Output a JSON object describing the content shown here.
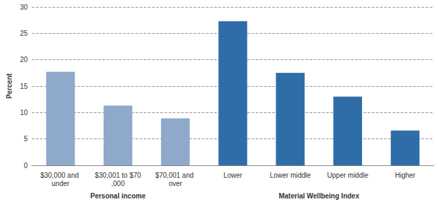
{
  "chart_data": {
    "type": "bar",
    "y_label": "Percent",
    "categories": [
      "$30,000 and under",
      "$30,001 to $70,000",
      "$70,001 and over",
      "Lower",
      "Lower middle",
      "Upper middle",
      "Higher"
    ],
    "values": [
      17.7,
      11.3,
      8.9,
      27.3,
      17.5,
      13.0,
      6.6
    ],
    "colors": [
      "#8fa9cb",
      "#8fa9cb",
      "#8fa9cb",
      "#2f6da9",
      "#2f6da9",
      "#2f6da9",
      "#2f6da9"
    ],
    "ylim": [
      0,
      30
    ],
    "yticks": [
      0,
      5,
      10,
      15,
      20,
      25,
      30
    ],
    "grid": true,
    "annotations": [
      {
        "text": "Personal income",
        "categories": [
          "$30,000 and under",
          "$30,001 to $70,000",
          "$70,001 and over"
        ]
      },
      {
        "text": "Material Wellbeing Index",
        "categories": [
          "Lower",
          "Lower middle",
          "Upper middle",
          "Higher"
        ]
      }
    ]
  }
}
